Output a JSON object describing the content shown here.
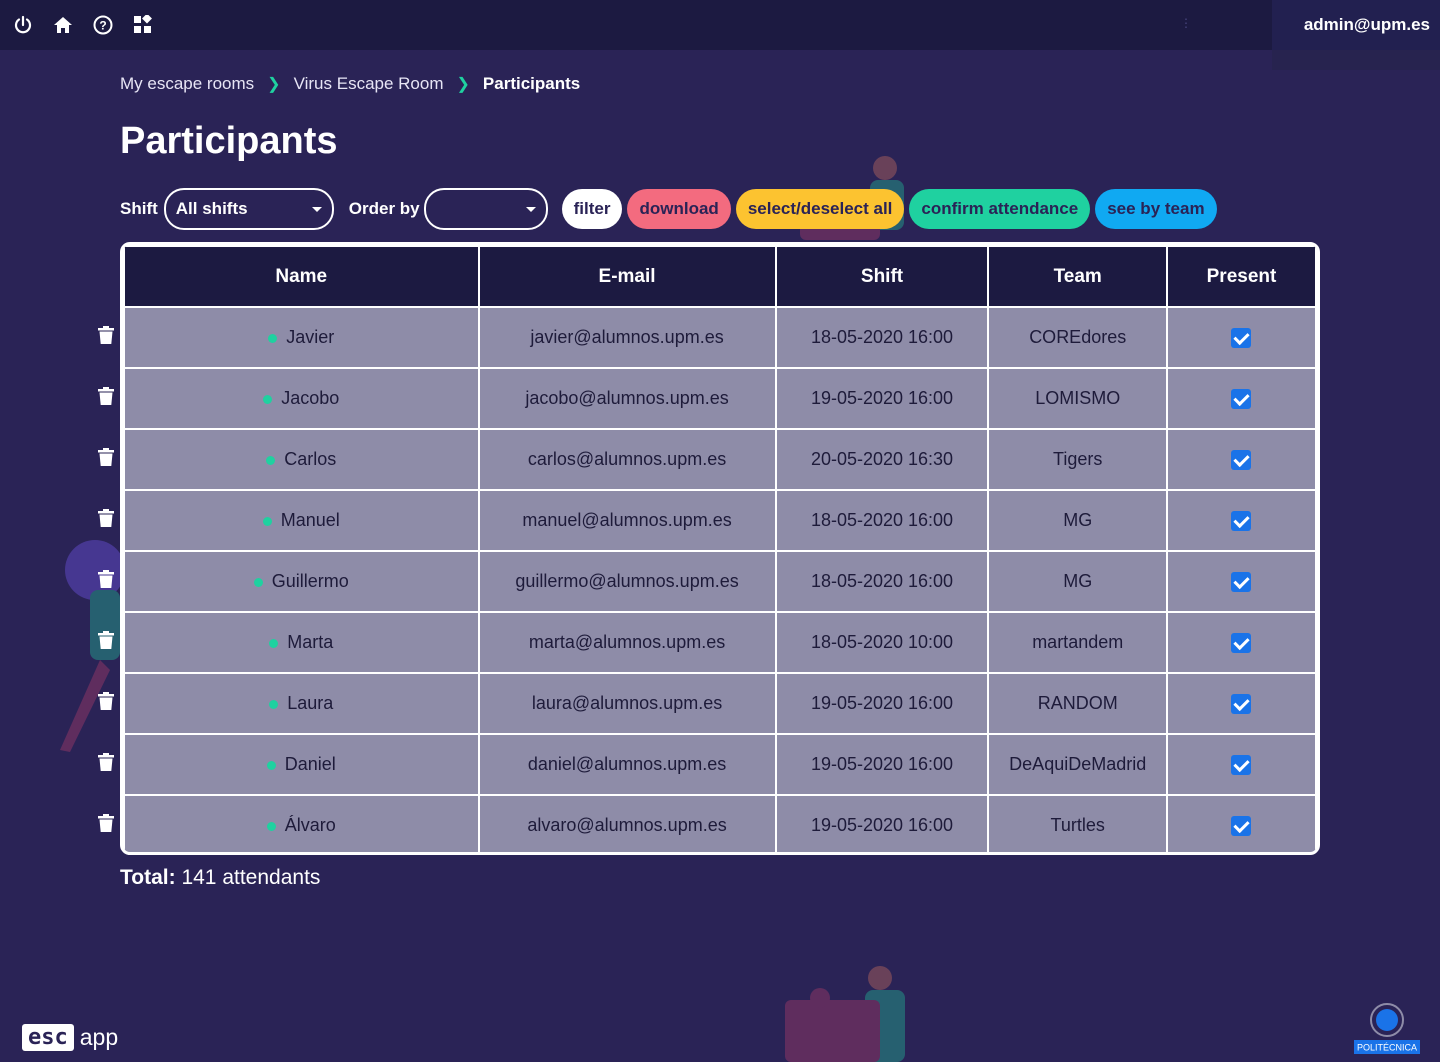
{
  "topbar": {
    "icons": [
      "power-icon",
      "home-icon",
      "help-icon",
      "apps-icon"
    ],
    "user": "admin@upm.es"
  },
  "breadcrumb": {
    "items": [
      "My escape rooms",
      "Virus Escape Room",
      "Participants"
    ]
  },
  "page_title": "Participants",
  "controls": {
    "shift_label": "Shift",
    "shift_value": "All shifts",
    "order_label": "Order by",
    "order_value": "",
    "buttons": {
      "filter": "filter",
      "download": "download",
      "select_all": "select/deselect all",
      "confirm": "confirm attendance",
      "see_team": "see by team"
    }
  },
  "colors": {
    "background": "#2a2356",
    "topbar": "#1c1a41",
    "filter": "#ffffff",
    "download": "#f36b7f",
    "select_all": "#fcc330",
    "confirm": "#1fd1a0",
    "see_team": "#10a9f2",
    "online_dot": "#1fd1a0",
    "checkbox": "#1a73e8"
  },
  "table": {
    "headers": [
      "Name",
      "E-mail",
      "Shift",
      "Team",
      "Present"
    ],
    "rows": [
      {
        "name": "Javier",
        "email": "javier@alumnos.upm.es",
        "shift": "18-05-2020 16:00",
        "team": "COREdores",
        "present": true
      },
      {
        "name": "Jacobo",
        "email": "jacobo@alumnos.upm.es",
        "shift": "19-05-2020 16:00",
        "team": "LOMISMO",
        "present": true
      },
      {
        "name": "Carlos",
        "email": "carlos@alumnos.upm.es",
        "shift": "20-05-2020 16:30",
        "team": "Tigers",
        "present": true
      },
      {
        "name": "Manuel",
        "email": "manuel@alumnos.upm.es",
        "shift": "18-05-2020 16:00",
        "team": "MG",
        "present": true
      },
      {
        "name": "Guillermo",
        "email": "guillermo@alumnos.upm.es",
        "shift": "18-05-2020 16:00",
        "team": "MG",
        "present": true
      },
      {
        "name": "Marta",
        "email": "marta@alumnos.upm.es",
        "shift": "18-05-2020 10:00",
        "team": "martandem",
        "present": true
      },
      {
        "name": "Laura",
        "email": "laura@alumnos.upm.es",
        "shift": "19-05-2020 16:00",
        "team": "RANDOM",
        "present": true
      },
      {
        "name": "Daniel",
        "email": "daniel@alumnos.upm.es",
        "shift": "19-05-2020 16:00",
        "team": "DeAquiDeMadrid",
        "present": true
      },
      {
        "name": "Álvaro",
        "email": "alvaro@alumnos.upm.es",
        "shift": "19-05-2020 16:00",
        "team": "Turtles",
        "present": true
      }
    ]
  },
  "total": {
    "label": "Total:",
    "value": "141 attendants"
  },
  "footer": {
    "logo_box": "esc",
    "logo_text": "app",
    "university": "POLITÉCNICA"
  }
}
